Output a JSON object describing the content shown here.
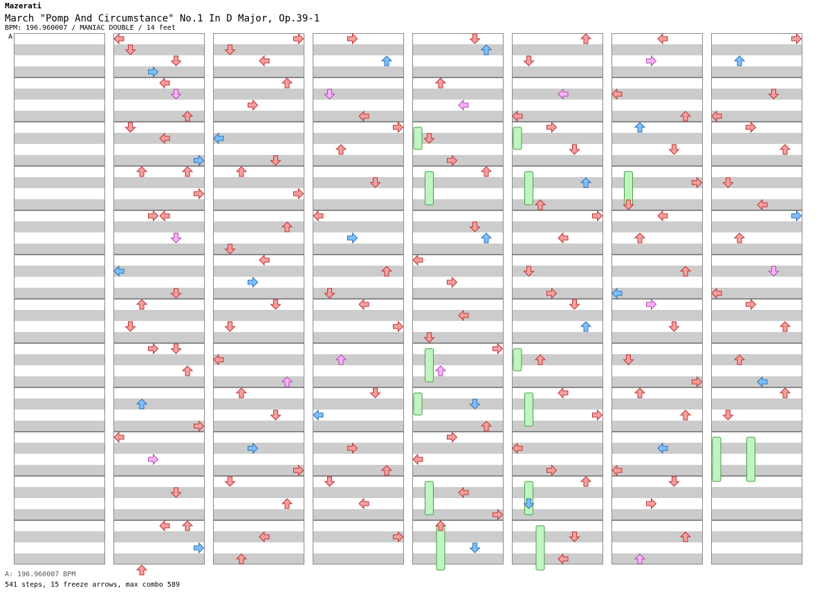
{
  "header": {
    "artist": "Mazerati",
    "title": "March \"Pomp And Circumstance\" No.1 In D Major, Op.39-1",
    "meta": "BPM: 196.960007 / MANIAC DOUBLE / 14 feet"
  },
  "bpm_marker": "A",
  "footer": {
    "bpm_line": "A: 196.960007 BPM",
    "stats_line": "541 steps, 15 freeze arrows, max combo 589"
  },
  "colors": {
    "quarter": "#f4a0a0",
    "eighth": "#7fbfff",
    "sixteenth": "#ffb0ff",
    "freeze": "#bff5bf",
    "band": "#cccccc"
  },
  "chart": {
    "columns": 8,
    "measures_per_column": 12,
    "lanes": 8,
    "arrows": [
      [
        1,
        0,
        0,
        0
      ],
      [
        1,
        0,
        1,
        1
      ],
      [
        1,
        0,
        2,
        5
      ],
      [
        1,
        0,
        3,
        3
      ],
      [
        1,
        1,
        0,
        4
      ],
      [
        1,
        1,
        1,
        5
      ],
      [
        1,
        1,
        3,
        6
      ],
      [
        1,
        1,
        4,
        1
      ],
      [
        1,
        2,
        0,
        1
      ],
      [
        1,
        2,
        1,
        4
      ],
      [
        1,
        2,
        3,
        7
      ],
      [
        1,
        2,
        4,
        2
      ],
      [
        1,
        3,
        0,
        6
      ],
      [
        1,
        3,
        2,
        7
      ],
      [
        1,
        3,
        4,
        4
      ],
      [
        1,
        4,
        0,
        3
      ],
      [
        1,
        4,
        2,
        5
      ],
      [
        1,
        5,
        1,
        0
      ],
      [
        1,
        5,
        3,
        5
      ],
      [
        1,
        6,
        0,
        2
      ],
      [
        1,
        6,
        2,
        1
      ],
      [
        1,
        6,
        4,
        3
      ],
      [
        1,
        7,
        0,
        5
      ],
      [
        1,
        7,
        2,
        6
      ],
      [
        1,
        8,
        1,
        2
      ],
      [
        1,
        8,
        3,
        7
      ],
      [
        1,
        9,
        0,
        0
      ],
      [
        1,
        9,
        2,
        3
      ],
      [
        1,
        10,
        1,
        5
      ],
      [
        1,
        10,
        4,
        6
      ],
      [
        1,
        11,
        0,
        4
      ],
      [
        1,
        11,
        2,
        7
      ],
      [
        1,
        11,
        4,
        2
      ],
      [
        2,
        0,
        0,
        7
      ],
      [
        2,
        0,
        1,
        1
      ],
      [
        2,
        0,
        2,
        4
      ],
      [
        2,
        1,
        0,
        6
      ],
      [
        2,
        1,
        2,
        3
      ],
      [
        2,
        2,
        1,
        0
      ],
      [
        2,
        2,
        3,
        5
      ],
      [
        2,
        3,
        0,
        2
      ],
      [
        2,
        3,
        2,
        7
      ],
      [
        2,
        4,
        1,
        6
      ],
      [
        2,
        4,
        3,
        1
      ],
      [
        2,
        5,
        0,
        4
      ],
      [
        2,
        5,
        2,
        3
      ],
      [
        2,
        6,
        0,
        5
      ],
      [
        2,
        6,
        2,
        1
      ],
      [
        2,
        7,
        1,
        0
      ],
      [
        2,
        7,
        3,
        6
      ],
      [
        2,
        8,
        0,
        2
      ],
      [
        2,
        8,
        2,
        5
      ],
      [
        2,
        9,
        1,
        3
      ],
      [
        2,
        9,
        3,
        7
      ],
      [
        2,
        10,
        0,
        1
      ],
      [
        2,
        10,
        2,
        6
      ],
      [
        2,
        11,
        1,
        4
      ],
      [
        2,
        11,
        3,
        2
      ],
      [
        3,
        0,
        0,
        3
      ],
      [
        3,
        0,
        2,
        6
      ],
      [
        3,
        1,
        1,
        1
      ],
      [
        3,
        1,
        3,
        4
      ],
      [
        3,
        2,
        0,
        7
      ],
      [
        3,
        2,
        2,
        2
      ],
      [
        3,
        3,
        1,
        5
      ],
      [
        3,
        4,
        0,
        0
      ],
      [
        3,
        4,
        2,
        3
      ],
      [
        3,
        5,
        1,
        6
      ],
      [
        3,
        5,
        3,
        1
      ],
      [
        3,
        6,
        0,
        4
      ],
      [
        3,
        6,
        2,
        7
      ],
      [
        3,
        7,
        1,
        2
      ],
      [
        3,
        8,
        0,
        5
      ],
      [
        3,
        8,
        2,
        0
      ],
      [
        3,
        9,
        1,
        3
      ],
      [
        3,
        9,
        3,
        6
      ],
      [
        3,
        10,
        0,
        1
      ],
      [
        3,
        10,
        2,
        4
      ],
      [
        3,
        11,
        1,
        7
      ],
      [
        4,
        0,
        0,
        5
      ],
      [
        4,
        0,
        1,
        6
      ],
      [
        4,
        1,
        0,
        2
      ],
      [
        4,
        1,
        2,
        4
      ],
      [
        4,
        2,
        1,
        1
      ],
      [
        4,
        2,
        3,
        3
      ],
      [
        4,
        3,
        0,
        6
      ],
      [
        4,
        4,
        1,
        5
      ],
      [
        4,
        4,
        2,
        6
      ],
      [
        4,
        5,
        0,
        0
      ],
      [
        4,
        5,
        2,
        3
      ],
      [
        4,
        6,
        1,
        4
      ],
      [
        4,
        6,
        3,
        1
      ],
      [
        4,
        7,
        0,
        7
      ],
      [
        4,
        7,
        2,
        2
      ],
      [
        4,
        8,
        1,
        5
      ],
      [
        4,
        8,
        3,
        6
      ],
      [
        4,
        9,
        0,
        3
      ],
      [
        4,
        9,
        2,
        0
      ],
      [
        4,
        10,
        1,
        4
      ],
      [
        4,
        10,
        3,
        7
      ],
      [
        4,
        11,
        0,
        2
      ],
      [
        4,
        11,
        2,
        5
      ],
      [
        5,
        0,
        0,
        6
      ],
      [
        5,
        0,
        2,
        1
      ],
      [
        5,
        1,
        1,
        4
      ],
      [
        5,
        1,
        3,
        0
      ],
      [
        5,
        2,
        0,
        3
      ],
      [
        5,
        2,
        2,
        5
      ],
      [
        5,
        3,
        1,
        6
      ],
      [
        5,
        3,
        3,
        2
      ],
      [
        5,
        4,
        0,
        7
      ],
      [
        5,
        4,
        2,
        4
      ],
      [
        5,
        5,
        1,
        1
      ],
      [
        5,
        5,
        3,
        3
      ],
      [
        5,
        6,
        0,
        5
      ],
      [
        5,
        6,
        2,
        6
      ],
      [
        5,
        7,
        1,
        2
      ],
      [
        5,
        8,
        0,
        4
      ],
      [
        5,
        8,
        2,
        7
      ],
      [
        5,
        9,
        1,
        0
      ],
      [
        5,
        9,
        3,
        3
      ],
      [
        5,
        10,
        0,
        6
      ],
      [
        5,
        10,
        2,
        1
      ],
      [
        5,
        11,
        1,
        5
      ],
      [
        5,
        11,
        3,
        4
      ],
      [
        6,
        0,
        0,
        4
      ],
      [
        6,
        0,
        2,
        3
      ],
      [
        6,
        1,
        1,
        0
      ],
      [
        6,
        1,
        3,
        6
      ],
      [
        6,
        2,
        0,
        2
      ],
      [
        6,
        2,
        2,
        5
      ],
      [
        6,
        3,
        1,
        7
      ],
      [
        6,
        3,
        3,
        1
      ],
      [
        6,
        4,
        0,
        4
      ],
      [
        6,
        4,
        2,
        2
      ],
      [
        6,
        5,
        1,
        6
      ],
      [
        6,
        5,
        3,
        0
      ],
      [
        6,
        6,
        0,
        3
      ],
      [
        6,
        6,
        2,
        5
      ],
      [
        6,
        7,
        1,
        1
      ],
      [
        6,
        7,
        3,
        7
      ],
      [
        6,
        8,
        0,
        2
      ],
      [
        6,
        8,
        2,
        6
      ],
      [
        6,
        9,
        1,
        4
      ],
      [
        6,
        9,
        3,
        0
      ],
      [
        6,
        10,
        0,
        5
      ],
      [
        6,
        10,
        2,
        3
      ],
      [
        6,
        11,
        1,
        6
      ],
      [
        6,
        11,
        3,
        2
      ],
      [
        7,
        0,
        0,
        7
      ],
      [
        7,
        0,
        2,
        2
      ],
      [
        7,
        1,
        1,
        5
      ],
      [
        7,
        1,
        3,
        0
      ],
      [
        7,
        2,
        0,
        3
      ],
      [
        7,
        2,
        2,
        6
      ],
      [
        7,
        3,
        1,
        1
      ],
      [
        7,
        3,
        3,
        4
      ],
      [
        7,
        4,
        0,
        7
      ],
      [
        7,
        4,
        2,
        2
      ],
      [
        7,
        5,
        1,
        5
      ],
      [
        7,
        5,
        3,
        0
      ],
      [
        7,
        6,
        0,
        3
      ],
      [
        7,
        6,
        2,
        6
      ],
      [
        7,
        7,
        1,
        2
      ],
      [
        7,
        7,
        3,
        4
      ],
      [
        7,
        8,
        0,
        6
      ],
      [
        7,
        8,
        2,
        1
      ]
    ],
    "freezes": [
      [
        4,
        2,
        0,
        2
      ],
      [
        4,
        3,
        1,
        3
      ],
      [
        4,
        7,
        1,
        3
      ],
      [
        4,
        8,
        0,
        2
      ],
      [
        4,
        10,
        1,
        3
      ],
      [
        4,
        11,
        2,
        4
      ],
      [
        5,
        2,
        0,
        2
      ],
      [
        5,
        3,
        1,
        3
      ],
      [
        5,
        7,
        0,
        2
      ],
      [
        5,
        8,
        1,
        3
      ],
      [
        5,
        10,
        1,
        3
      ],
      [
        5,
        11,
        2,
        4
      ],
      [
        6,
        3,
        1,
        3
      ],
      [
        7,
        9,
        0,
        4
      ],
      [
        7,
        9,
        3,
        4
      ]
    ]
  }
}
